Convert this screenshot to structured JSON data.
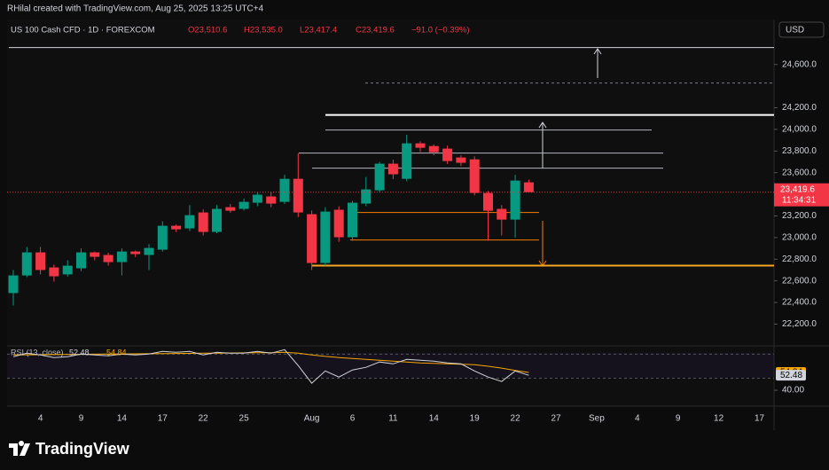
{
  "chart_data": {
    "type": "candlestick",
    "watermark": "RHilal created with TradingView.com, Aug 25, 2025 13:25 UTC+4",
    "symbol": "US 100 Cash CFD · 1D · FOREXCOM",
    "ohlc_labels": [
      "O23,510.6",
      "H23,535.0",
      "L23,417.4",
      "C23,419.6",
      "−91.0 (−0.39%)"
    ],
    "currency": "USD",
    "countdown": "11:34:31",
    "logo": "TradingView",
    "up_color": "#089981",
    "down_color": "#f23645",
    "categories": [
      null,
      null,
      "4",
      null,
      null,
      "9",
      null,
      null,
      "14",
      null,
      null,
      "17",
      null,
      null,
      "22",
      null,
      null,
      "25",
      null,
      null,
      null,
      null,
      "Aug",
      null,
      null,
      "6",
      null,
      null,
      "11",
      null,
      null,
      "14",
      null,
      null,
      "19",
      null,
      null,
      "22",
      null,
      null,
      "27",
      null,
      null,
      "Sep",
      null,
      null,
      "4",
      null,
      null,
      "9",
      null,
      null,
      "12",
      null,
      null,
      "17"
    ],
    "open": [
      22487,
      22650,
      22863,
      22724,
      22660,
      22716,
      22863,
      22839,
      22773,
      22871,
      22839,
      22888,
      23109,
      23085,
      23232,
      23052,
      23281,
      23265,
      23322,
      23380,
      23330,
      23543,
      23216,
      22765,
      23257,
      23003,
      23314,
      23437,
      23683,
      23543,
      23871,
      23846,
      23822,
      23740,
      23723,
      23412,
      23265,
      23166,
      23510.6,
      null,
      null,
      null,
      null,
      null,
      null,
      null,
      null,
      null,
      null,
      null,
      null,
      null,
      null,
      null,
      null,
      null
    ],
    "high": [
      22700,
      22913,
      22913,
      22750,
      22790,
      22900,
      22870,
      22860,
      22900,
      22880,
      22940,
      23150,
      23120,
      23300,
      23260,
      23300,
      23310,
      23360,
      23420,
      23420,
      23580,
      23780,
      23250,
      23280,
      23290,
      23340,
      23560,
      23700,
      23720,
      23950,
      23890,
      23860,
      23850,
      23760,
      23750,
      23430,
      23300,
      23580,
      23535,
      null,
      null,
      null,
      null,
      null,
      null,
      null,
      null,
      null,
      null,
      null,
      null,
      null,
      null,
      null,
      null,
      null
    ],
    "low": [
      22372,
      22634,
      22660,
      22593,
      22640,
      22690,
      22790,
      22740,
      22650,
      22820,
      22700,
      22870,
      23050,
      23060,
      23020,
      23040,
      23230,
      23250,
      23290,
      23280,
      23310,
      23190,
      22700,
      22740,
      22960,
      22970,
      23290,
      23420,
      23540,
      23520,
      23790,
      23760,
      23680,
      23660,
      23390,
      22970,
      23020,
      23000,
      23417.4,
      null,
      null,
      null,
      null,
      null,
      null,
      null,
      null,
      null,
      null,
      null,
      null,
      null,
      null,
      null,
      null,
      null
    ],
    "close": [
      22650,
      22863,
      22700,
      22642,
      22740,
      22863,
      22822,
      22773,
      22871,
      22847,
      22904,
      23109,
      23076,
      23207,
      23052,
      23265,
      23248,
      23330,
      23396,
      23314,
      23543,
      23232,
      22765,
      23240,
      23003,
      23322,
      23445,
      23683,
      23585,
      23871,
      23830,
      23789,
      23707,
      23691,
      23412,
      23248,
      23166,
      23527,
      23419.6,
      null,
      null,
      null,
      null,
      null,
      null,
      null,
      null,
      null,
      null,
      null,
      null,
      null,
      null,
      null,
      null,
      null
    ],
    "last_price_label": "23,419.6",
    "ylim": [
      22040,
      24950
    ],
    "yticks": [
      {
        "value": 22200,
        "label": "22,200.0"
      },
      {
        "value": 22400,
        "label": "22,400.0"
      },
      {
        "value": 22600,
        "label": "22,600.0"
      },
      {
        "value": 22800,
        "label": "22,800.0"
      },
      {
        "value": 23000,
        "label": "23,000.0"
      },
      {
        "value": 23200,
        "label": "23,200.0"
      },
      {
        "value": 23600,
        "label": "23,600.0"
      },
      {
        "value": 23800,
        "label": "23,800.0"
      },
      {
        "value": 24000,
        "label": "24,000.0"
      },
      {
        "value": 24200,
        "label": "24,200.0"
      },
      {
        "value": 24600,
        "label": "24,600.0"
      }
    ],
    "levels": [
      {
        "price": 24756,
        "color": "#d1d4dc"
      },
      {
        "price": 24428,
        "color": "#787b86"
      },
      {
        "price": 24133,
        "color": "#ffffff"
      },
      {
        "price": 23994,
        "color": "#b2b5be"
      },
      {
        "price": 23781,
        "color": "#b2b5be"
      },
      {
        "price": 23642,
        "color": "#b2b5be"
      },
      {
        "price": 23232,
        "color": "#f57c00"
      },
      {
        "price": 22978,
        "color": "#f57c00"
      },
      {
        "price": 22741,
        "color": "#f5a623"
      }
    ],
    "rsi": {
      "title": "RSI (13, close)",
      "ylim": [
        29,
        74
      ],
      "levels": [
        70,
        50
      ],
      "yticks": [
        {
          "value": 40,
          "label": "40.00"
        }
      ],
      "series": [
        {
          "name": "RSI",
          "color": "#d1d4dc",
          "value_label": "52.48",
          "values": [
            67.9,
            70.8,
            69.4,
            67.2,
            67.9,
            70.1,
            69.4,
            68.6,
            70.1,
            69.4,
            70.1,
            72.3,
            71.6,
            72.3,
            69.4,
            71.6,
            70.8,
            70.8,
            72.3,
            70.8,
            73.8,
            60.6,
            45.9,
            56.1,
            51.0,
            56.9,
            59.1,
            63.5,
            62.0,
            65.7,
            64.9,
            64.2,
            62.8,
            62.0,
            56.1,
            51.0,
            47.3,
            56.1,
            52.48,
            null,
            null,
            null,
            null,
            null,
            null,
            null,
            null,
            null,
            null,
            null,
            null,
            null,
            null,
            null,
            null,
            null
          ]
        },
        {
          "name": "MA",
          "color": "#f7a600",
          "value_label": "54.84",
          "values": [
            69.4,
            69.5,
            69.6,
            69.7,
            69.8,
            69.9,
            70.0,
            70.1,
            70.2,
            70.3,
            70.4,
            70.5,
            70.6,
            70.7,
            70.8,
            70.9,
            71.0,
            71.1,
            71.2,
            71.3,
            71.6,
            70.8,
            69.4,
            68.2,
            67.2,
            66.4,
            65.7,
            65.0,
            64.2,
            63.5,
            62.8,
            62.4,
            62.0,
            61.6,
            61.3,
            60.0,
            58.4,
            56.5,
            54.84,
            null,
            null,
            null,
            null,
            null,
            null,
            null,
            null,
            null,
            null,
            null,
            null,
            null,
            null,
            null,
            null,
            null
          ]
        }
      ]
    }
  }
}
